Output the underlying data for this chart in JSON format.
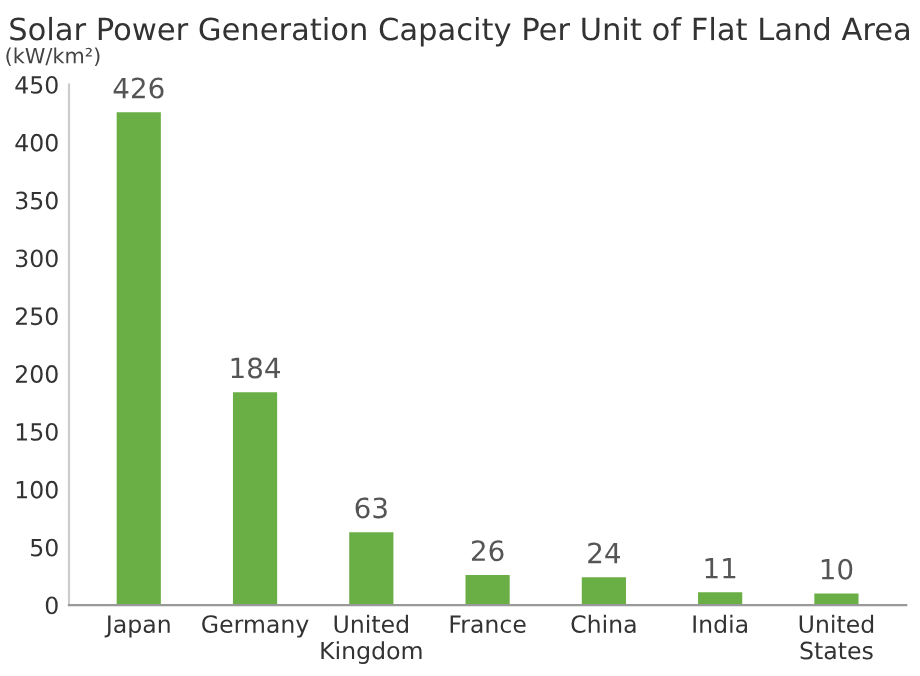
{
  "chart_data": {
    "type": "bar",
    "title": "Solar Power Generation Capacity Per Unit of Flat Land Area",
    "ylabel": "(kW/km²)",
    "categories": [
      "Japan",
      "Germany",
      "United\nKingdom",
      "France",
      "China",
      "India",
      "United\nStates"
    ],
    "values": [
      426,
      184,
      63,
      26,
      24,
      11,
      10
    ],
    "color": "#6aaf45",
    "ylim": [
      0,
      450
    ],
    "yticks": [
      0,
      50,
      100,
      150,
      200,
      250,
      300,
      350,
      400,
      450
    ],
    "grid": false,
    "data_labels": true
  }
}
